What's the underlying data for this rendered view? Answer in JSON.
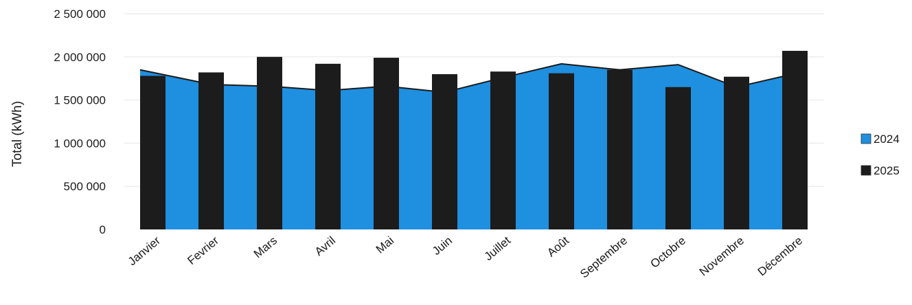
{
  "chart_data": {
    "type": "bar",
    "ylabel": "Total (kWh)",
    "xlabel": "",
    "title": "",
    "ylim": [
      0,
      2500000
    ],
    "yticks": [
      0,
      500000,
      1000000,
      1500000,
      2000000,
      2500000
    ],
    "ytick_labels": [
      "0",
      "500 000",
      "1 000 000",
      "1 500 000",
      "2 000 000",
      "2 500 000"
    ],
    "categories": [
      "Janvier",
      "Fevrier",
      "Mars",
      "Avril",
      "Mai",
      "Juin",
      "Juillet",
      "Août",
      "Septembre",
      "Octobre",
      "Novembre",
      "Décembre"
    ],
    "series": [
      {
        "name": "2024",
        "kind": "area",
        "color": "#1f8fe0",
        "values": [
          1850000,
          1680000,
          1660000,
          1610000,
          1660000,
          1590000,
          1760000,
          1920000,
          1850000,
          1910000,
          1650000,
          1840000
        ]
      },
      {
        "name": "2025",
        "kind": "bar",
        "color": "#1c1c1c",
        "values": [
          1780000,
          1820000,
          2000000,
          1920000,
          1990000,
          1800000,
          1830000,
          1810000,
          1850000,
          1650000,
          1770000,
          2070000
        ]
      }
    ],
    "grid": true,
    "legend": "right"
  }
}
